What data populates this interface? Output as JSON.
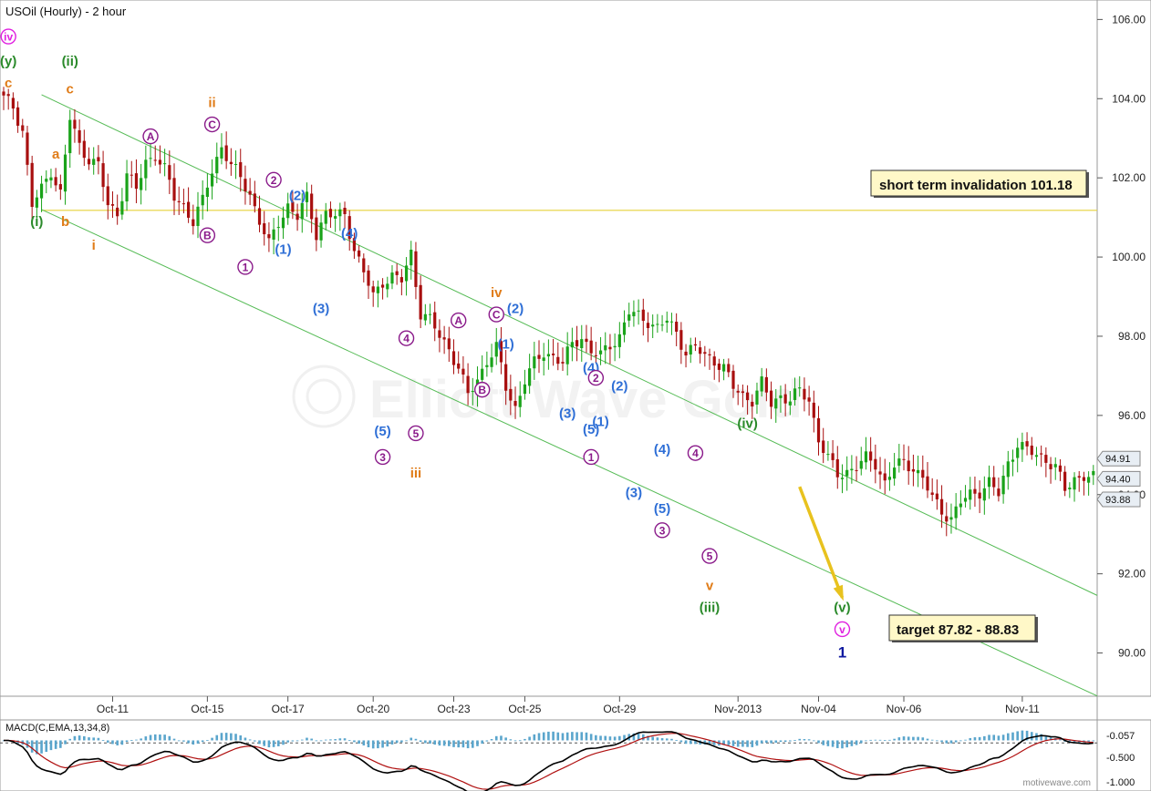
{
  "title": "USOil (Hourly) - 2 hour",
  "watermark": "Elliott Wave Gold",
  "credit": "motivewave.com",
  "macd_label": "MACD(C,EMA,13,34,8)",
  "macd_ticks": [
    "-0.057",
    "-0.500",
    "-1.000"
  ],
  "notes": {
    "invalidation": "short term invalidation 101.18",
    "target": "target 87.82 - 88.83"
  },
  "colors": {
    "up": "#1aa31a",
    "down": "#a80f0f",
    "channel": "#55bb55",
    "invalidation_line": "#e6d23a",
    "target_arrow": "#e8c21e",
    "purple": "#8a1a8a",
    "blue": "#2f6fd6",
    "orange": "#e07c18",
    "green": "#2a8a2a",
    "magenta": "#e020e0",
    "navy": "#101aa0",
    "macd_hist": "#5aa5cc",
    "macd_line": "#000000",
    "signal_line": "#b01010"
  },
  "chart_data": {
    "type": "candlestick",
    "title": "USOil (Hourly) - 2 hour",
    "x_ticks": [
      "Oct-11",
      "Oct-15",
      "Oct-17",
      "Oct-20",
      "Oct-23",
      "Oct-25",
      "Oct-29",
      "Nov-2013",
      "Nov-04",
      "Nov-06",
      "Nov-11"
    ],
    "ylim": [
      89.0,
      106.4
    ],
    "y_ticks": [
      "90.00",
      "92.00",
      "94.00",
      "96.00",
      "98.00",
      "100.00",
      "102.00",
      "104.00",
      "106.00"
    ],
    "price_tags": [
      {
        "value": 94.91,
        "label": "94.91"
      },
      {
        "value": 94.4,
        "label": "94.40"
      },
      {
        "value": 93.88,
        "label": "93.88"
      }
    ],
    "invalidation_level": 101.18,
    "key_points": [
      [
        0,
        104.0
      ],
      [
        2,
        103.8
      ],
      [
        4,
        103.2
      ],
      [
        6,
        101.3
      ],
      [
        8,
        101.7
      ],
      [
        10,
        102.2
      ],
      [
        12,
        101.6
      ],
      [
        14,
        103.5
      ],
      [
        16,
        102.8
      ],
      [
        18,
        102.5
      ],
      [
        20,
        102.3
      ],
      [
        22,
        101.3
      ],
      [
        24,
        101.1
      ],
      [
        26,
        102.1
      ],
      [
        28,
        101.7
      ],
      [
        30,
        102.4
      ],
      [
        32,
        102.6
      ],
      [
        34,
        102.2
      ],
      [
        36,
        101.5
      ],
      [
        38,
        101.3
      ],
      [
        40,
        100.9
      ],
      [
        42,
        101.4
      ],
      [
        44,
        102.2
      ],
      [
        46,
        102.8
      ],
      [
        48,
        102.3
      ],
      [
        50,
        102.0
      ],
      [
        52,
        101.6
      ],
      [
        54,
        100.9
      ],
      [
        56,
        100.3
      ],
      [
        58,
        100.9
      ],
      [
        60,
        101.3
      ],
      [
        62,
        101.0
      ],
      [
        64,
        101.5
      ],
      [
        66,
        100.6
      ],
      [
        68,
        101.1
      ],
      [
        70,
        101.0
      ],
      [
        72,
        101.1
      ],
      [
        74,
        100.2
      ],
      [
        76,
        99.6
      ],
      [
        78,
        99.0
      ],
      [
        80,
        99.4
      ],
      [
        82,
        99.5
      ],
      [
        84,
        99.4
      ],
      [
        86,
        100.1
      ],
      [
        88,
        98.6
      ],
      [
        90,
        98.4
      ],
      [
        92,
        98.0
      ],
      [
        94,
        97.7
      ],
      [
        96,
        97.2
      ],
      [
        98,
        96.5
      ],
      [
        100,
        96.9
      ],
      [
        102,
        97.4
      ],
      [
        104,
        97.7
      ],
      [
        106,
        96.7
      ],
      [
        108,
        96.2
      ],
      [
        110,
        96.9
      ],
      [
        112,
        97.3
      ],
      [
        114,
        97.6
      ],
      [
        116,
        97.5
      ],
      [
        118,
        97.3
      ],
      [
        120,
        97.8
      ],
      [
        122,
        98.0
      ],
      [
        124,
        97.6
      ],
      [
        126,
        97.5
      ],
      [
        128,
        97.8
      ],
      [
        130,
        98.0
      ],
      [
        132,
        98.6
      ],
      [
        134,
        98.5
      ],
      [
        136,
        98.4
      ],
      [
        138,
        98.2
      ],
      [
        140,
        98.4
      ],
      [
        142,
        98.1
      ],
      [
        144,
        97.6
      ],
      [
        146,
        97.7
      ],
      [
        148,
        97.5
      ],
      [
        150,
        97.4
      ],
      [
        152,
        97.2
      ],
      [
        154,
        96.7
      ],
      [
        156,
        96.5
      ],
      [
        158,
        96.4
      ],
      [
        160,
        96.8
      ],
      [
        162,
        96.3
      ],
      [
        164,
        96.5
      ],
      [
        166,
        96.4
      ],
      [
        168,
        96.6
      ],
      [
        170,
        96.4
      ],
      [
        172,
        95.4
      ],
      [
        174,
        94.9
      ],
      [
        176,
        94.5
      ],
      [
        178,
        94.6
      ],
      [
        180,
        94.7
      ],
      [
        182,
        94.9
      ],
      [
        184,
        94.8
      ],
      [
        186,
        94.3
      ],
      [
        188,
        94.7
      ],
      [
        190,
        94.8
      ],
      [
        192,
        94.7
      ],
      [
        194,
        94.4
      ],
      [
        196,
        93.9
      ],
      [
        198,
        93.6
      ],
      [
        200,
        93.4
      ],
      [
        202,
        93.8
      ],
      [
        204,
        94.0
      ],
      [
        206,
        94.1
      ],
      [
        208,
        94.3
      ],
      [
        210,
        94.0
      ],
      [
        212,
        94.8
      ],
      [
        214,
        95.3
      ],
      [
        216,
        95.1
      ],
      [
        218,
        95.0
      ],
      [
        220,
        94.9
      ],
      [
        222,
        94.7
      ],
      [
        224,
        94.1
      ],
      [
        226,
        94.4
      ],
      [
        228,
        94.5
      ],
      [
        230,
        94.4
      ]
    ],
    "wave_labels": [
      {
        "text": "iv",
        "x": 1,
        "y": 105.57,
        "style": "circle",
        "color": "magenta"
      },
      {
        "text": "(y)",
        "x": 1,
        "y": 104.95,
        "color": "green"
      },
      {
        "text": "c",
        "x": 1,
        "y": 104.4,
        "color": "orange"
      },
      {
        "text": "(ii)",
        "x": 14,
        "y": 104.95,
        "color": "green"
      },
      {
        "text": "c",
        "x": 14,
        "y": 104.25,
        "color": "orange"
      },
      {
        "text": "a",
        "x": 11,
        "y": 102.6,
        "color": "orange"
      },
      {
        "text": "b",
        "x": 13,
        "y": 100.9,
        "color": "orange"
      },
      {
        "text": "(i)",
        "x": 7,
        "y": 100.9,
        "color": "green"
      },
      {
        "text": "i",
        "x": 19,
        "y": 100.3,
        "color": "orange"
      },
      {
        "text": "A",
        "x": 31,
        "y": 103.05,
        "style": "circle",
        "color": "purple"
      },
      {
        "text": "ii",
        "x": 44,
        "y": 103.9,
        "color": "orange"
      },
      {
        "text": "C",
        "x": 44,
        "y": 103.35,
        "style": "circle",
        "color": "purple"
      },
      {
        "text": "B",
        "x": 43,
        "y": 100.55,
        "style": "circle",
        "color": "purple"
      },
      {
        "text": "2",
        "x": 57,
        "y": 101.95,
        "style": "circle",
        "color": "purple"
      },
      {
        "text": "1",
        "x": 51,
        "y": 99.75,
        "style": "circle",
        "color": "purple"
      },
      {
        "text": "(2)",
        "x": 62,
        "y": 101.55,
        "color": "blue"
      },
      {
        "text": "(1)",
        "x": 59,
        "y": 100.2,
        "color": "blue"
      },
      {
        "text": "(4)",
        "x": 73,
        "y": 100.6,
        "color": "blue"
      },
      {
        "text": "(3)",
        "x": 67,
        "y": 98.7,
        "color": "blue"
      },
      {
        "text": "4",
        "x": 85,
        "y": 97.95,
        "style": "circle",
        "color": "purple"
      },
      {
        "text": "(5)",
        "x": 80,
        "y": 95.6,
        "color": "blue"
      },
      {
        "text": "3",
        "x": 80,
        "y": 94.95,
        "style": "circle",
        "color": "purple"
      },
      {
        "text": "5",
        "x": 87,
        "y": 95.55,
        "style": "circle",
        "color": "purple"
      },
      {
        "text": "iii",
        "x": 87,
        "y": 94.55,
        "color": "orange"
      },
      {
        "text": "A",
        "x": 96,
        "y": 98.4,
        "style": "circle",
        "color": "purple"
      },
      {
        "text": "B",
        "x": 101,
        "y": 96.65,
        "style": "circle",
        "color": "purple"
      },
      {
        "text": "iv",
        "x": 104,
        "y": 99.1,
        "color": "orange"
      },
      {
        "text": "C",
        "x": 104,
        "y": 98.55,
        "style": "circle",
        "color": "purple"
      },
      {
        "text": "(2)",
        "x": 108,
        "y": 98.7,
        "color": "blue"
      },
      {
        "text": "(1)",
        "x": 106,
        "y": 97.8,
        "color": "blue"
      },
      {
        "text": "(4)",
        "x": 124,
        "y": 97.2,
        "color": "blue"
      },
      {
        "text": "2",
        "x": 125,
        "y": 96.95,
        "style": "circle",
        "color": "purple"
      },
      {
        "text": "(2)",
        "x": 130,
        "y": 96.75,
        "color": "blue"
      },
      {
        "text": "(3)",
        "x": 119,
        "y": 96.05,
        "color": "blue"
      },
      {
        "text": "(1)",
        "x": 126,
        "y": 95.85,
        "color": "blue"
      },
      {
        "text": "(5)",
        "x": 124,
        "y": 95.65,
        "color": "blue"
      },
      {
        "text": "1",
        "x": 124,
        "y": 94.95,
        "style": "circle",
        "color": "purple"
      },
      {
        "text": "(4)",
        "x": 139,
        "y": 95.15,
        "color": "blue"
      },
      {
        "text": "4",
        "x": 146,
        "y": 95.05,
        "style": "circle",
        "color": "purple"
      },
      {
        "text": "(3)",
        "x": 133,
        "y": 94.05,
        "color": "blue"
      },
      {
        "text": "(5)",
        "x": 139,
        "y": 93.65,
        "color": "blue"
      },
      {
        "text": "3",
        "x": 139,
        "y": 93.1,
        "style": "circle",
        "color": "purple"
      },
      {
        "text": "5",
        "x": 149,
        "y": 92.45,
        "style": "circle",
        "color": "purple"
      },
      {
        "text": "v",
        "x": 149,
        "y": 91.7,
        "color": "orange"
      },
      {
        "text": "(iii)",
        "x": 149,
        "y": 91.15,
        "color": "green"
      },
      {
        "text": "(iv)",
        "x": 157,
        "y": 95.8,
        "color": "green"
      },
      {
        "text": "(v)",
        "x": 177,
        "y": 91.15,
        "color": "green"
      },
      {
        "text": "v",
        "x": 177,
        "y": 90.6,
        "style": "circle",
        "color": "magenta"
      },
      {
        "text": "1",
        "x": 177,
        "y": 90.0,
        "color": "navy"
      }
    ],
    "channel_lines": [
      {
        "x1": 8,
        "y1": 104.1,
        "x2": 193,
        "y2": 93.6
      },
      {
        "x1": 8,
        "y1": 101.2,
        "x2": 193,
        "y2": 91.0
      }
    ],
    "target_arrow": {
      "x1": 168,
      "y1": 94.2,
      "x2": 177,
      "y2": 91.4
    }
  }
}
